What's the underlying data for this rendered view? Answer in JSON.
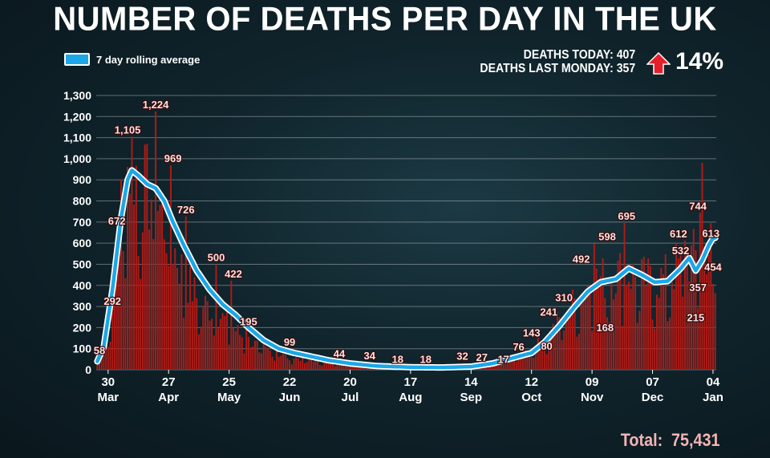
{
  "header": {
    "title": "NUMBER OF DEATHS PER DAY IN THE UK",
    "legend_label": "7 day rolling average",
    "deaths_today": "DEATHS TODAY: 407",
    "deaths_last_monday": "DEATHS LAST MONDAY: 357",
    "change_pct": "14%",
    "total_label": "Total:",
    "total_value": "75,431"
  },
  "colors": {
    "bar": "#b01b16",
    "line": "#1ba7e8",
    "line_outline": "#ffffff",
    "arrow": "#e5202a"
  },
  "chart_data": {
    "type": "bar",
    "title": "NUMBER OF DEATHS PER DAY IN THE UK",
    "ylim": [
      0,
      1300
    ],
    "yticks": [
      "0",
      "100",
      "200",
      "300",
      "400",
      "500",
      "600",
      "700",
      "800",
      "900",
      "1,000",
      "1,100",
      "1,200",
      "1,300"
    ],
    "grid": true,
    "x_start": "2020-03-25",
    "x_end": "2021-01-05",
    "x_ticks": [
      {
        "day": "30",
        "month": "Mar",
        "date": "2020-03-30"
      },
      {
        "day": "27",
        "month": "Apr",
        "date": "2020-04-27"
      },
      {
        "day": "25",
        "month": "May",
        "date": "2020-05-25"
      },
      {
        "day": "22",
        "month": "Jun",
        "date": "2020-06-22"
      },
      {
        "day": "20",
        "month": "Jul",
        "date": "2020-07-20"
      },
      {
        "day": "17",
        "month": "Aug",
        "date": "2020-08-17"
      },
      {
        "day": "14",
        "month": "Sep",
        "date": "2020-09-14"
      },
      {
        "day": "12",
        "month": "Oct",
        "date": "2020-10-12"
      },
      {
        "day": "09",
        "month": "Nov",
        "date": "2020-11-09"
      },
      {
        "day": "07",
        "month": "Dec",
        "date": "2020-12-07"
      },
      {
        "day": "04",
        "month": "Jan",
        "date": "2021-01-04"
      }
    ],
    "daily_anchors": [
      [
        "2020-03-25",
        40
      ],
      [
        "2020-03-30",
        180
      ],
      [
        "2020-04-03",
        620
      ],
      [
        "2020-04-07",
        950
      ],
      [
        "2020-04-10",
        1000
      ],
      [
        "2020-04-14",
        880
      ],
      [
        "2020-04-21",
        820
      ],
      [
        "2020-04-27",
        650
      ],
      [
        "2020-05-04",
        450
      ],
      [
        "2020-05-11",
        330
      ],
      [
        "2020-05-18",
        280
      ],
      [
        "2020-05-25",
        220
      ],
      [
        "2020-06-01",
        150
      ],
      [
        "2020-06-08",
        110
      ],
      [
        "2020-06-15",
        80
      ],
      [
        "2020-06-22",
        60
      ],
      [
        "2020-07-06",
        45
      ],
      [
        "2020-07-20",
        25
      ],
      [
        "2020-08-03",
        18
      ],
      [
        "2020-08-17",
        12
      ],
      [
        "2020-08-31",
        10
      ],
      [
        "2020-09-14",
        18
      ],
      [
        "2020-09-28",
        45
      ],
      [
        "2020-10-05",
        65
      ],
      [
        "2020-10-12",
        100
      ],
      [
        "2020-10-19",
        150
      ],
      [
        "2020-10-26",
        250
      ],
      [
        "2020-11-02",
        340
      ],
      [
        "2020-11-09",
        420
      ],
      [
        "2020-11-16",
        440
      ],
      [
        "2020-11-23",
        470
      ],
      [
        "2020-11-30",
        440
      ],
      [
        "2020-12-07",
        420
      ],
      [
        "2020-12-14",
        440
      ],
      [
        "2020-12-21",
        520
      ],
      [
        "2020-12-28",
        540
      ],
      [
        "2021-01-04",
        600
      ]
    ],
    "daily_spikes": [
      [
        "2020-04-10",
        1105
      ],
      [
        "2020-04-21",
        1224
      ],
      [
        "2020-04-28",
        969
      ],
      [
        "2020-05-05",
        726
      ],
      [
        "2020-05-19",
        500
      ],
      [
        "2020-05-26",
        422
      ],
      [
        "2020-06-02",
        195
      ],
      [
        "2020-06-16",
        99
      ],
      [
        "2020-11-10",
        598
      ],
      [
        "2020-11-24",
        695
      ],
      [
        "2020-12-30",
        981
      ],
      [
        "2020-12-29",
        744
      ],
      [
        "2020-12-22",
        612
      ]
    ],
    "rolling_average_anchors": [
      [
        "2020-03-25",
        40
      ],
      [
        "2020-03-28",
        110
      ],
      [
        "2020-04-01",
        380
      ],
      [
        "2020-04-05",
        720
      ],
      [
        "2020-04-08",
        900
      ],
      [
        "2020-04-10",
        945
      ],
      [
        "2020-04-13",
        920
      ],
      [
        "2020-04-17",
        880
      ],
      [
        "2020-04-21",
        860
      ],
      [
        "2020-04-25",
        800
      ],
      [
        "2020-04-29",
        700
      ],
      [
        "2020-05-04",
        590
      ],
      [
        "2020-05-10",
        470
      ],
      [
        "2020-05-16",
        380
      ],
      [
        "2020-05-22",
        310
      ],
      [
        "2020-05-28",
        260
      ],
      [
        "2020-06-03",
        200
      ],
      [
        "2020-06-10",
        140
      ],
      [
        "2020-06-17",
        100
      ],
      [
        "2020-06-24",
        80
      ],
      [
        "2020-07-01",
        65
      ],
      [
        "2020-07-10",
        45
      ],
      [
        "2020-07-20",
        30
      ],
      [
        "2020-08-01",
        18
      ],
      [
        "2020-08-17",
        12
      ],
      [
        "2020-09-01",
        11
      ],
      [
        "2020-09-14",
        15
      ],
      [
        "2020-09-24",
        30
      ],
      [
        "2020-10-03",
        55
      ],
      [
        "2020-10-12",
        80
      ],
      [
        "2020-10-18",
        130
      ],
      [
        "2020-10-25",
        210
      ],
      [
        "2020-11-01",
        300
      ],
      [
        "2020-11-07",
        370
      ],
      [
        "2020-11-13",
        415
      ],
      [
        "2020-11-20",
        430
      ],
      [
        "2020-11-26",
        480
      ],
      [
        "2020-12-02",
        450
      ],
      [
        "2020-12-08",
        415
      ],
      [
        "2020-12-14",
        420
      ],
      [
        "2020-12-20",
        480
      ],
      [
        "2020-12-24",
        530
      ],
      [
        "2020-12-27",
        470
      ],
      [
        "2020-12-30",
        520
      ],
      [
        "2021-01-02",
        590
      ],
      [
        "2021-01-04",
        625
      ]
    ],
    "data_labels": [
      {
        "text": "58",
        "date": "2020-03-26",
        "value": 58
      },
      {
        "text": "292",
        "date": "2020-04-01",
        "value": 292
      },
      {
        "text": "672",
        "date": "2020-04-03",
        "value": 672
      },
      {
        "text": "1,105",
        "date": "2020-04-08",
        "value": 1105
      },
      {
        "text": "1,224",
        "date": "2020-04-21",
        "value": 1224
      },
      {
        "text": "969",
        "date": "2020-04-29",
        "value": 969
      },
      {
        "text": "726",
        "date": "2020-05-05",
        "value": 726
      },
      {
        "text": "500",
        "date": "2020-05-19",
        "value": 500
      },
      {
        "text": "422",
        "date": "2020-05-27",
        "value": 422
      },
      {
        "text": "195",
        "date": "2020-06-03",
        "value": 195
      },
      {
        "text": "99",
        "date": "2020-06-22",
        "value": 99
      },
      {
        "text": "44",
        "date": "2020-07-15",
        "value": 44
      },
      {
        "text": "34",
        "date": "2020-07-29",
        "value": 34
      },
      {
        "text": "18",
        "date": "2020-08-11",
        "value": 18
      },
      {
        "text": "18",
        "date": "2020-08-24",
        "value": 18
      },
      {
        "text": "32",
        "date": "2020-09-10",
        "value": 32
      },
      {
        "text": "27",
        "date": "2020-09-19",
        "value": 27
      },
      {
        "text": "17",
        "date": "2020-09-29",
        "value": 17
      },
      {
        "text": "76",
        "date": "2020-10-06",
        "value": 76
      },
      {
        "text": "143",
        "date": "2020-10-12",
        "value": 143
      },
      {
        "text": "80",
        "date": "2020-10-19",
        "value": 80
      },
      {
        "text": "241",
        "date": "2020-10-20",
        "value": 241
      },
      {
        "text": "310",
        "date": "2020-10-27",
        "value": 310
      },
      {
        "text": "492",
        "date": "2020-11-04",
        "value": 492
      },
      {
        "text": "168",
        "date": "2020-11-15",
        "value": 168
      },
      {
        "text": "598",
        "date": "2020-11-16",
        "value": 598
      },
      {
        "text": "695",
        "date": "2020-11-25",
        "value": 695
      },
      {
        "text": "612",
        "date": "2020-12-19",
        "value": 612
      },
      {
        "text": "532",
        "date": "2020-12-20",
        "value": 532
      },
      {
        "text": "744",
        "date": "2020-12-28",
        "value": 744
      },
      {
        "text": "215",
        "date": "2020-12-27",
        "value": 215
      },
      {
        "text": "357",
        "date": "2020-12-28",
        "value": 357
      },
      {
        "text": "613",
        "date": "2021-01-03",
        "value": 613
      },
      {
        "text": "454",
        "date": "2021-01-04",
        "value": 454
      }
    ],
    "series": [
      {
        "name": "Daily deaths",
        "style": "bars"
      },
      {
        "name": "7 day rolling average",
        "style": "line"
      }
    ]
  }
}
